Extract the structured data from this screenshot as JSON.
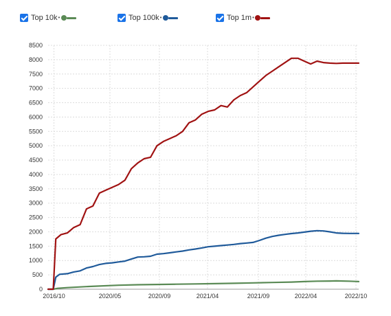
{
  "legend": [
    {
      "label": "Top 10k",
      "color": "#5a8a55"
    },
    {
      "label": "Top 100k",
      "color": "#1f5a9a"
    },
    {
      "label": "Top 1m",
      "color": "#a01212"
    }
  ],
  "chart_data": {
    "type": "line",
    "title": "",
    "xlabel": "",
    "ylabel": "",
    "ylim": [
      0,
      8500
    ],
    "yticks": [
      0,
      500,
      1000,
      1500,
      2000,
      2500,
      3000,
      3500,
      4000,
      4500,
      5000,
      5500,
      6000,
      6500,
      7000,
      7500,
      8000,
      8500
    ],
    "xtick_labels": [
      "2016/10",
      "2020/05",
      "2020/09",
      "2021/04",
      "2021/09",
      "2022/04",
      "2022/10"
    ],
    "grid": true,
    "series": [
      {
        "name": "Top 10k",
        "color": "#5a8a55",
        "points": [
          [
            0,
            0
          ],
          [
            0.8,
            0
          ],
          [
            1.5,
            30
          ],
          [
            3,
            55
          ],
          [
            6,
            90
          ],
          [
            8,
            110
          ],
          [
            11,
            140
          ],
          [
            14,
            155
          ],
          [
            17,
            165
          ],
          [
            20,
            175
          ],
          [
            23,
            185
          ],
          [
            26,
            195
          ],
          [
            29,
            205
          ],
          [
            32,
            220
          ],
          [
            35,
            235
          ],
          [
            38,
            250
          ],
          [
            40,
            265
          ],
          [
            42,
            280
          ],
          [
            44,
            285
          ],
          [
            45,
            290
          ],
          [
            47,
            280
          ],
          [
            48,
            270
          ],
          [
            48.5,
            265
          ]
        ]
      },
      {
        "name": "Top 100k",
        "color": "#1f5a9a",
        "points": [
          [
            0,
            0
          ],
          [
            0.8,
            0
          ],
          [
            1.2,
            420
          ],
          [
            1.8,
            520
          ],
          [
            3,
            540
          ],
          [
            4,
            600
          ],
          [
            5,
            640
          ],
          [
            6,
            740
          ],
          [
            7,
            790
          ],
          [
            8,
            860
          ],
          [
            9,
            900
          ],
          [
            10,
            920
          ],
          [
            11,
            950
          ],
          [
            12,
            980
          ],
          [
            13,
            1050
          ],
          [
            14,
            1120
          ],
          [
            15,
            1130
          ],
          [
            16,
            1150
          ],
          [
            17,
            1220
          ],
          [
            18,
            1240
          ],
          [
            19,
            1270
          ],
          [
            20,
            1300
          ],
          [
            21,
            1330
          ],
          [
            22,
            1370
          ],
          [
            23,
            1400
          ],
          [
            24,
            1440
          ],
          [
            25,
            1480
          ],
          [
            26,
            1500
          ],
          [
            27,
            1520
          ],
          [
            28,
            1540
          ],
          [
            29,
            1560
          ],
          [
            30,
            1590
          ],
          [
            31,
            1610
          ],
          [
            32,
            1630
          ],
          [
            33,
            1700
          ],
          [
            34,
            1780
          ],
          [
            35,
            1840
          ],
          [
            36,
            1880
          ],
          [
            37,
            1910
          ],
          [
            38,
            1940
          ],
          [
            39,
            1960
          ],
          [
            40,
            1990
          ],
          [
            41,
            2020
          ],
          [
            42,
            2040
          ],
          [
            43,
            2030
          ],
          [
            44,
            2000
          ],
          [
            45,
            1960
          ],
          [
            46,
            1950
          ],
          [
            47,
            1945
          ],
          [
            48,
            1945
          ],
          [
            48.5,
            1945
          ]
        ]
      },
      {
        "name": "Top 1m",
        "color": "#a01212",
        "points": [
          [
            0,
            0
          ],
          [
            0.8,
            0
          ],
          [
            1.2,
            1750
          ],
          [
            2,
            1900
          ],
          [
            3,
            1960
          ],
          [
            4,
            2150
          ],
          [
            5,
            2250
          ],
          [
            6,
            2800
          ],
          [
            7,
            2900
          ],
          [
            8,
            3350
          ],
          [
            9,
            3450
          ],
          [
            10,
            3550
          ],
          [
            11,
            3650
          ],
          [
            12,
            3800
          ],
          [
            13,
            4200
          ],
          [
            14,
            4400
          ],
          [
            15,
            4550
          ],
          [
            16,
            4600
          ],
          [
            17,
            5000
          ],
          [
            18,
            5150
          ],
          [
            19,
            5250
          ],
          [
            20,
            5350
          ],
          [
            21,
            5500
          ],
          [
            22,
            5800
          ],
          [
            23,
            5900
          ],
          [
            24,
            6100
          ],
          [
            25,
            6200
          ],
          [
            26,
            6250
          ],
          [
            27,
            6400
          ],
          [
            28,
            6350
          ],
          [
            29,
            6600
          ],
          [
            30,
            6750
          ],
          [
            31,
            6850
          ],
          [
            32,
            7050
          ],
          [
            33,
            7250
          ],
          [
            34,
            7450
          ],
          [
            35,
            7600
          ],
          [
            36,
            7750
          ],
          [
            37,
            7900
          ],
          [
            38,
            8050
          ],
          [
            39,
            8050
          ],
          [
            40,
            7950
          ],
          [
            41,
            7850
          ],
          [
            42,
            7950
          ],
          [
            43,
            7900
          ],
          [
            44,
            7880
          ],
          [
            45,
            7870
          ],
          [
            46,
            7880
          ],
          [
            47,
            7880
          ],
          [
            48,
            7880
          ],
          [
            48.5,
            7880
          ]
        ]
      }
    ]
  }
}
